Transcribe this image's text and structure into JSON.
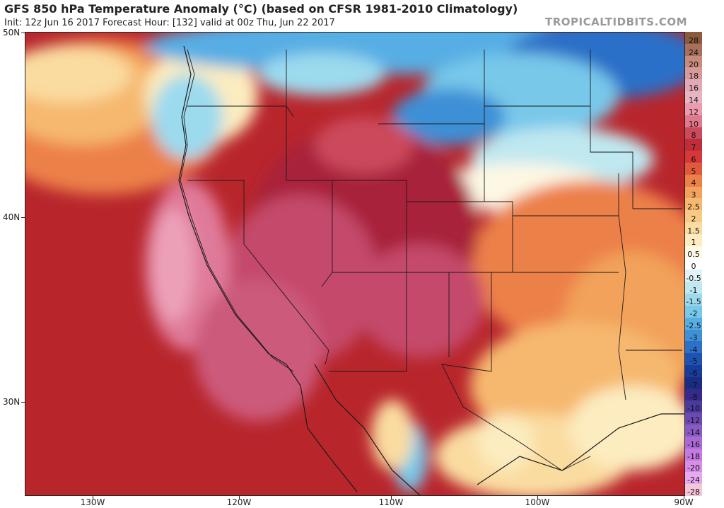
{
  "header": {
    "title": "GFS 850 hPa Temperature Anomaly (°C) (based on CFSR 1981-2010 Climatology)",
    "subtitle": "Init: 12z Jun 16 2017   Forecast Hour: [132]   valid at 00z Thu, Jun 22 2017",
    "brand": "TROPICALTIDBITS.COM"
  },
  "axes": {
    "lat_labels": [
      "50N",
      "40N",
      "30N"
    ],
    "lon_labels": [
      "130W",
      "120W",
      "110W",
      "100W",
      "90W"
    ]
  },
  "colorbar": {
    "labels": [
      "28",
      "24",
      "20",
      "18",
      "16",
      "14",
      "12",
      "10",
      "8",
      "7",
      "6",
      "5",
      "4",
      "3",
      "2.5",
      "2",
      "1.5",
      "1",
      "0.5",
      "0",
      "-0.5",
      "-1",
      "-1.5",
      "-2",
      "-2.5",
      "-3",
      "-4",
      "-5",
      "-6",
      "-7",
      "-8",
      "-10",
      "-12",
      "-14",
      "-16",
      "-18",
      "-20",
      "-24",
      "-28"
    ],
    "colors": [
      "#8a5a3a",
      "#a8705a",
      "#c88a7a",
      "#d89a98",
      "#e2a8b6",
      "#e8b4c2",
      "#ec9aae",
      "#e0788e",
      "#cc4a5c",
      "#bf2d3a",
      "#d6383a",
      "#e05a3a",
      "#ec8048",
      "#f2a25a",
      "#f6b86e",
      "#f8ca84",
      "#fadca0",
      "#fcecc0",
      "#fdf8e4",
      "#ffffff",
      "#e0f4f8",
      "#bfe8f0",
      "#9cdaee",
      "#78c8ea",
      "#56aee4",
      "#3e90d6",
      "#2c70c8",
      "#1e52b4",
      "#183c9c",
      "#1a2c84",
      "#342a8c",
      "#4a3a9a",
      "#6a4ab0",
      "#8a5ac4",
      "#aa6ad6",
      "#c47ae0",
      "#d88ee6",
      "#e6a8ee",
      "#f2c8d8"
    ]
  }
}
